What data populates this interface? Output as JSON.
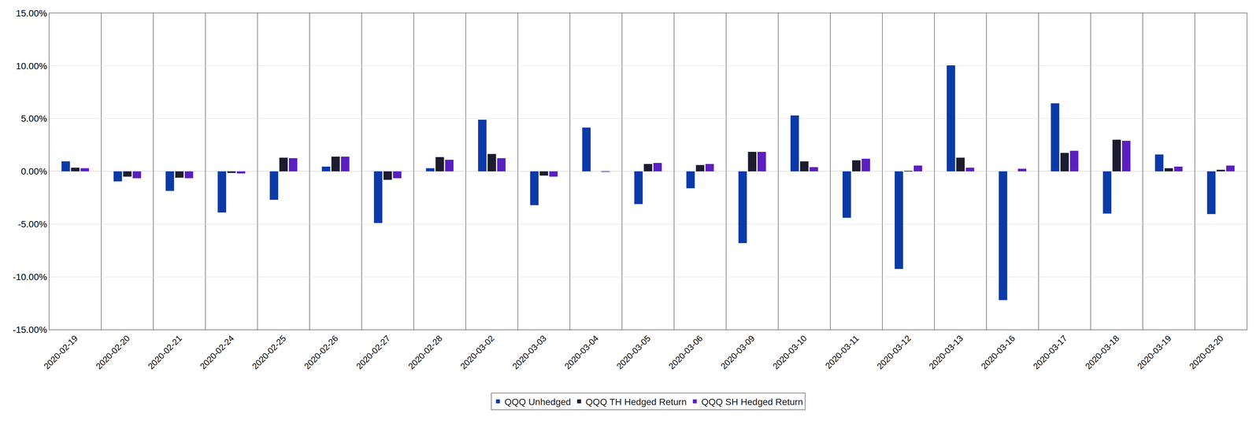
{
  "chart_data": {
    "type": "bar",
    "categories": [
      "2020-02-19",
      "2020-02-20",
      "2020-02-21",
      "2020-02-24",
      "2020-02-25",
      "2020-02-26",
      "2020-02-27",
      "2020-02-28",
      "2020-03-02",
      "2020-03-03",
      "2020-03-04",
      "2020-03-05",
      "2020-03-06",
      "2020-03-09",
      "2020-03-10",
      "2020-03-11",
      "2020-03-12",
      "2020-03-13",
      "2020-03-16",
      "2020-03-17",
      "2020-03-18",
      "2020-03-19",
      "2020-03-20"
    ],
    "series": [
      {
        "name": "QQQ Unhedged",
        "color": "#0b3aa8",
        "values": [
          0.95,
          -0.95,
          -1.85,
          -3.9,
          -2.7,
          0.45,
          -4.9,
          0.3,
          4.9,
          -3.2,
          4.15,
          -3.1,
          -1.6,
          -6.8,
          5.3,
          -4.4,
          -9.25,
          10.05,
          -12.2,
          6.45,
          -4.0,
          1.6,
          -4.05
        ]
      },
      {
        "name": "QQQ TH Hedged Return",
        "color": "#1c1c2e",
        "values": [
          0.35,
          -0.5,
          -0.6,
          -0.15,
          1.3,
          1.4,
          -0.8,
          1.35,
          1.65,
          -0.4,
          0.0,
          0.7,
          0.6,
          1.85,
          0.95,
          1.05,
          0.05,
          1.3,
          0.0,
          1.75,
          3.0,
          0.3,
          0.15
        ]
      },
      {
        "name": "QQQ SH Hedged Return",
        "color": "#5b1fbf",
        "values": [
          0.3,
          -0.65,
          -0.65,
          -0.2,
          1.25,
          1.4,
          -0.65,
          1.1,
          1.25,
          -0.5,
          -0.05,
          0.8,
          0.7,
          1.85,
          0.4,
          1.2,
          0.55,
          0.35,
          0.25,
          1.95,
          2.9,
          0.45,
          0.55
        ]
      }
    ],
    "ylim": [
      -15,
      15
    ],
    "yticks": [
      {
        "value": -15,
        "label": "-15.00%"
      },
      {
        "value": -10,
        "label": "-10.00%"
      },
      {
        "value": -5,
        "label": "-5.00%"
      },
      {
        "value": 0,
        "label": "0.00%"
      },
      {
        "value": 5,
        "label": "5.00%"
      },
      {
        "value": 10,
        "label": "10.00%"
      },
      {
        "value": 15,
        "label": "15.00%"
      }
    ],
    "grid": true,
    "legend": "bottom"
  }
}
